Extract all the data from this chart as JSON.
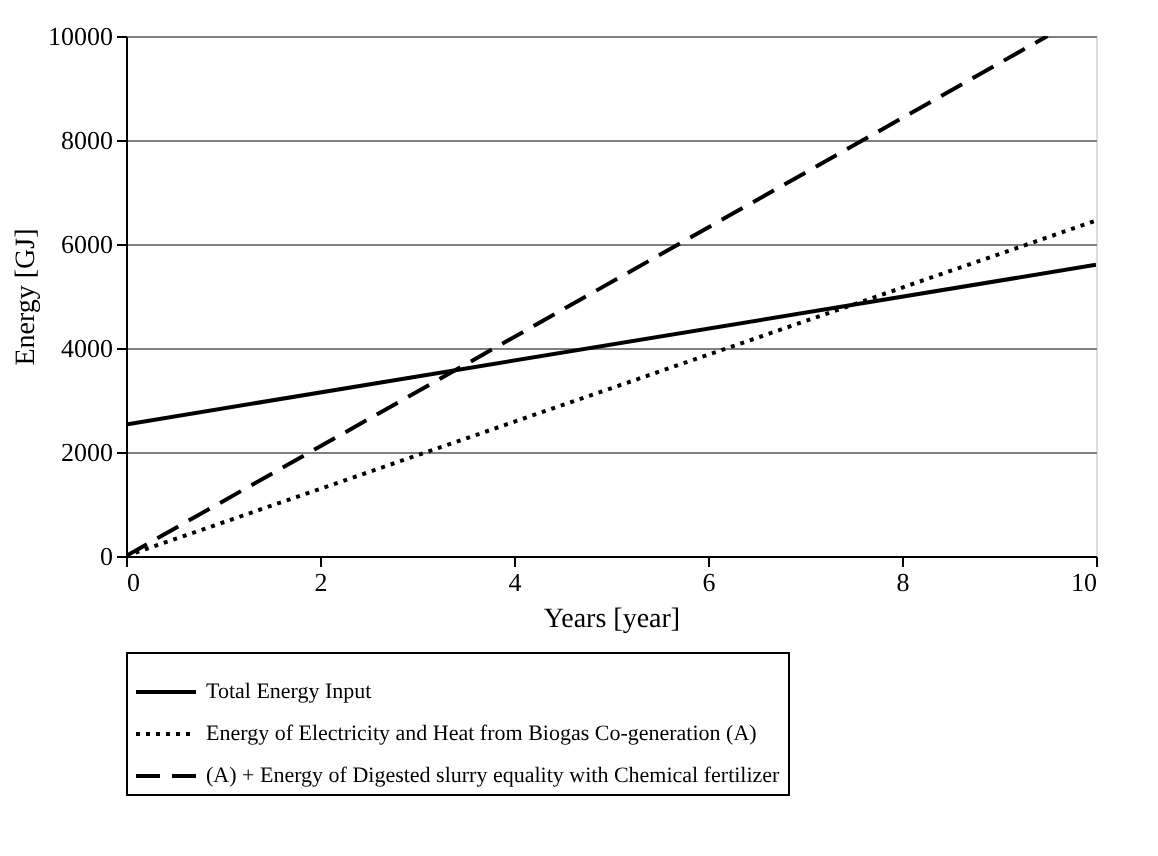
{
  "chart_data": {
    "type": "line",
    "xlabel": "Years [year]",
    "ylabel": "Energy [GJ]",
    "xlim": [
      0,
      10
    ],
    "xticks": [
      0,
      2,
      4,
      6,
      8,
      10
    ],
    "ylim": [
      0,
      10000
    ],
    "yticks": [
      0,
      2000,
      4000,
      6000,
      8000,
      10000
    ],
    "grid": "y",
    "legend": "bottom",
    "marker": "none",
    "series": [
      {
        "name": "Total Energy Input",
        "color": "#000000",
        "line_style": "solid",
        "x": [
          0,
          10
        ],
        "values": [
          2530,
          5600
        ]
      },
      {
        "name": "Energy of Electricity and Heat from Biogas Co-generation (A)",
        "color": "#000000",
        "line_style": "dotted",
        "x": [
          0,
          10
        ],
        "values": [
          0,
          6450
        ]
      },
      {
        "name": "(A) + Energy of Digested slurry equality with Chemical fertilizer",
        "color": "#000000",
        "line_style": "dashed",
        "x": [
          0,
          9.5
        ],
        "values": [
          0,
          10000
        ]
      }
    ]
  }
}
